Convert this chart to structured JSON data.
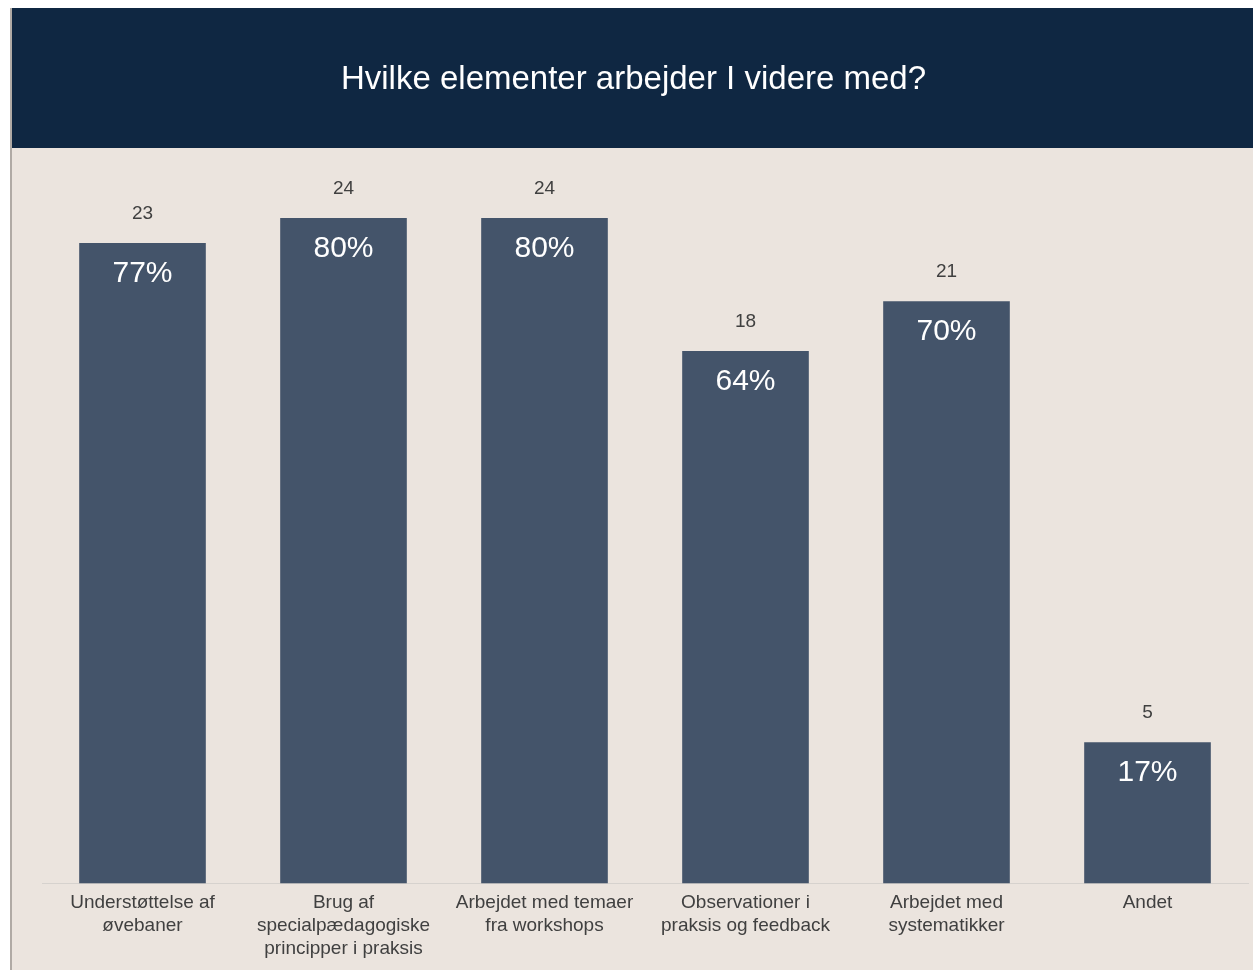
{
  "chart_data": {
    "type": "bar",
    "title": "Hvilke elementer arbejder I videre med?",
    "categories": [
      "Understøttelse af øvebaner",
      "Brug af specialpædagogiske principper i praksis",
      "Arbejdet med temaer fra workshops",
      "Observationer i praksis og feedback",
      "Arbejdet med systematikker",
      "Andet"
    ],
    "values": [
      77,
      80,
      80,
      64,
      70,
      17
    ],
    "value_labels": [
      "77%",
      "80%",
      "80%",
      "64%",
      "70%",
      "17%"
    ],
    "color": "#44546a",
    "annotations": [
      {
        "text": "23",
        "x": "Understøttelse af øvebaner",
        "y": 77
      },
      {
        "text": "24",
        "x": "Brug af specialpædagogiske principper i praksis",
        "y": 80
      },
      {
        "text": "24",
        "x": "Arbejdet med temaer fra workshops",
        "y": 80
      },
      {
        "text": "18",
        "x": "Observationer i praksis og feedback",
        "y": 64
      },
      {
        "text": "21",
        "x": "Arbejdet med systematikker",
        "y": 70
      },
      {
        "text": "5",
        "x": "Andet",
        "y": 17
      }
    ],
    "grid": false,
    "legend": false
  }
}
